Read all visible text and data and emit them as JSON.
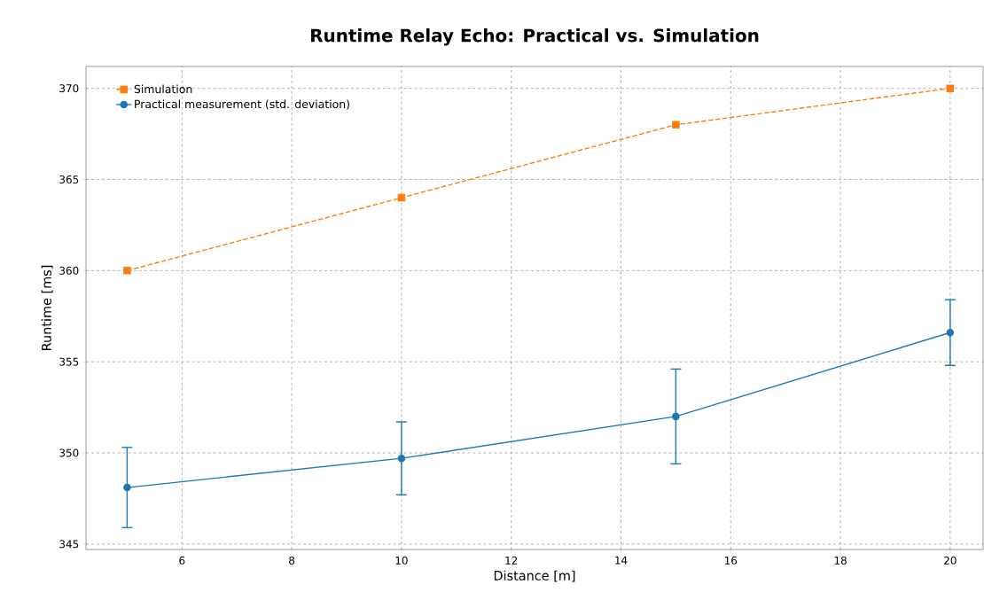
{
  "chart_data": {
    "type": "line",
    "title": "Runtime Relay Echo: Practical vs. Simulation",
    "xlabel": "Distance [m]",
    "ylabel": "Runtime [ms]",
    "x": [
      5,
      10,
      15,
      20
    ],
    "series": [
      {
        "name": "Simulation",
        "color": "#ff7f0e",
        "values": [
          360,
          364,
          368,
          370
        ],
        "marker": "square",
        "line_style": "dashed"
      },
      {
        "name": "Practical measurement (std. deviation)",
        "color": "#1f77b4",
        "values": [
          348.1,
          349.7,
          352.0,
          356.6
        ],
        "errors": [
          2.2,
          2.0,
          2.6,
          1.8
        ],
        "marker": "circle",
        "line_style": "solid"
      }
    ],
    "xlim": [
      4.25,
      20.6
    ],
    "ylim": [
      344.7,
      371.2
    ],
    "xticks": [
      6,
      8,
      10,
      12,
      14,
      16,
      18,
      20
    ],
    "yticks": [
      345,
      350,
      355,
      360,
      365,
      370
    ],
    "grid": true,
    "legend": "top left"
  }
}
